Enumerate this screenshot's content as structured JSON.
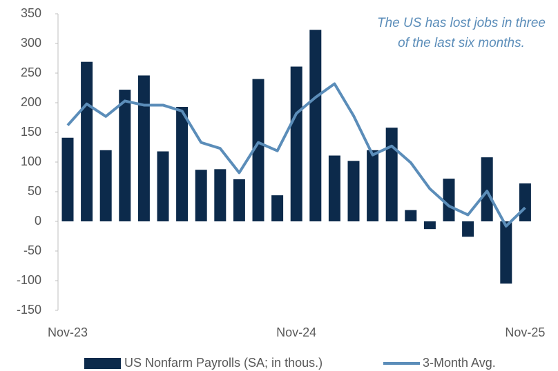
{
  "chart_data": {
    "type": "bar",
    "annotation": [
      "The US has lost jobs in three",
      "of the last six months."
    ],
    "categories": [
      "Nov-23",
      null,
      null,
      null,
      null,
      null,
      null,
      null,
      null,
      null,
      null,
      null,
      "Nov-24",
      null,
      null,
      null,
      null,
      null,
      null,
      null,
      null,
      null,
      null,
      null,
      "Nov-25"
    ],
    "series": [
      {
        "name": "US Nonfarm Payrolls (SA; in thous.)",
        "type": "bar",
        "color": "#0c2a4b",
        "values": [
          141,
          269,
          120,
          222,
          246,
          118,
          193,
          87,
          88,
          71,
          240,
          44,
          261,
          323,
          111,
          102,
          120,
          158,
          19,
          -13,
          72,
          -26,
          108,
          -105,
          64
        ]
      },
      {
        "name": "3-Month Avg.",
        "type": "line",
        "color": "#5b8db9",
        "values": [
          162,
          198,
          177,
          203,
          196,
          196,
          186,
          133,
          123,
          82,
          133,
          119,
          182,
          209,
          232,
          178,
          112,
          127,
          99,
          55,
          26,
          11,
          51,
          -8,
          23
        ]
      }
    ],
    "ylim": [
      -150,
      350
    ],
    "yticks": [
      -150,
      -100,
      -50,
      0,
      50,
      100,
      150,
      200,
      250,
      300,
      350
    ]
  }
}
